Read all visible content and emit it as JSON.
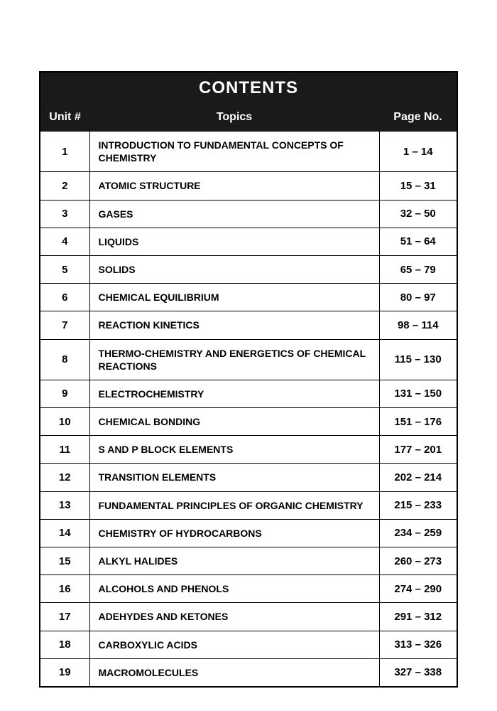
{
  "title": "CONTENTS",
  "columns": {
    "unit": "Unit #",
    "topics": "Topics",
    "page": "Page No."
  },
  "rows": [
    {
      "unit": "1",
      "topic": "INTRODUCTION TO FUNDAMENTAL CONCEPTS OF CHEMISTRY",
      "pages": "1 – 14"
    },
    {
      "unit": "2",
      "topic": "ATOMIC STRUCTURE",
      "pages": "15 – 31"
    },
    {
      "unit": "3",
      "topic": "GASES",
      "pages": "32 – 50"
    },
    {
      "unit": "4",
      "topic": "LIQUIDS",
      "pages": "51 – 64"
    },
    {
      "unit": "5",
      "topic": "SOLIDS",
      "pages": "65 – 79"
    },
    {
      "unit": "6",
      "topic": "CHEMICAL EQUILIBRIUM",
      "pages": "80 – 97"
    },
    {
      "unit": "7",
      "topic": "REACTION KINETICS",
      "pages": "98 – 114"
    },
    {
      "unit": "8",
      "topic": "THERMO-CHEMISTRY AND ENERGETICS OF CHEMICAL REACTIONS",
      "pages": "115 – 130"
    },
    {
      "unit": "9",
      "topic": "ELECTROCHEMISTRY",
      "pages": "131 – 150"
    },
    {
      "unit": "10",
      "topic": "CHEMICAL BONDING",
      "pages": "151 – 176"
    },
    {
      "unit": "11",
      "topic": "S AND P BLOCK ELEMENTS",
      "pages": "177 – 201"
    },
    {
      "unit": "12",
      "topic": "TRANSITION ELEMENTS",
      "pages": "202 – 214"
    },
    {
      "unit": "13",
      "topic": "FUNDAMENTAL PRINCIPLES OF ORGANIC CHEMISTRY",
      "pages": "215 – 233"
    },
    {
      "unit": "14",
      "topic": "CHEMISTRY OF HYDROCARBONS",
      "pages": "234 – 259"
    },
    {
      "unit": "15",
      "topic": "ALKYL HALIDES",
      "pages": "260 – 273"
    },
    {
      "unit": "16",
      "topic": "ALCOHOLS AND PHENOLS",
      "pages": "274 – 290"
    },
    {
      "unit": "17",
      "topic": "ADEHYDES AND KETONES",
      "pages": "291 – 312"
    },
    {
      "unit": "18",
      "topic": "CARBOXYLIC ACIDS",
      "pages": "313 – 326"
    },
    {
      "unit": "19",
      "topic": "MACROMOLECULES",
      "pages": "327 – 338"
    }
  ],
  "styling": {
    "title_bg": "#1a1a1a",
    "title_color": "#ffffff",
    "title_fontsize": 24,
    "header_fontsize": 16,
    "cell_fontsize": 14,
    "border_color": "#000000",
    "background_color": "#ffffff",
    "col_widths": {
      "unit": 70,
      "page": 110
    }
  }
}
